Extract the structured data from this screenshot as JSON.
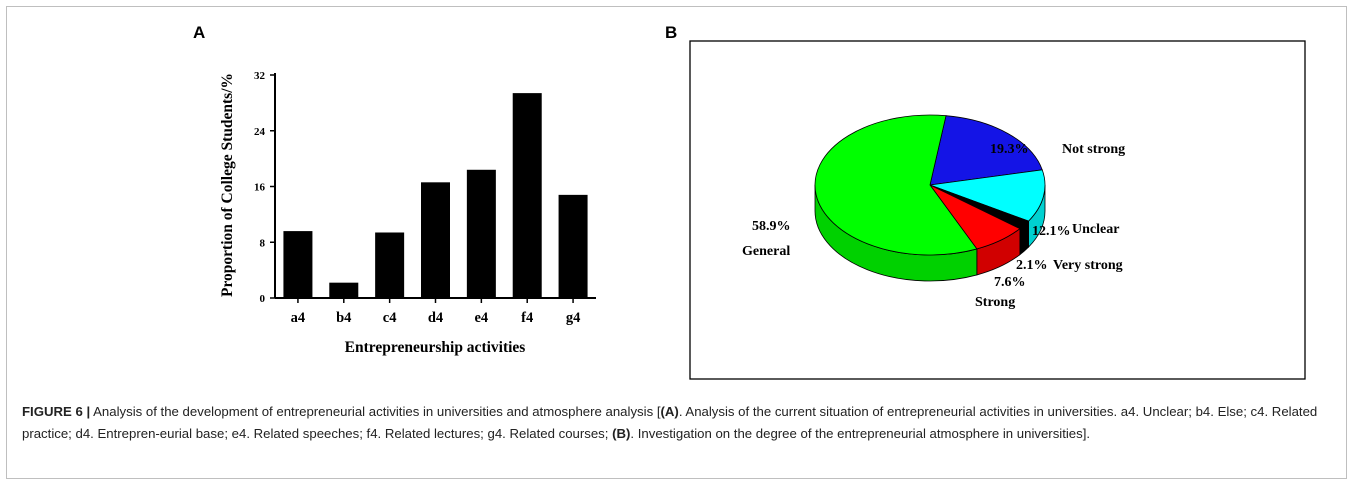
{
  "panel_a_letter": "A",
  "panel_b_letter": "B",
  "chart_data": [
    {
      "type": "bar",
      "categories": [
        "a4",
        "b4",
        "c4",
        "d4",
        "e4",
        "f4",
        "g4"
      ],
      "values": [
        9.6,
        2.2,
        9.4,
        16.6,
        18.4,
        29.4,
        14.8
      ],
      "xlabel": "Entrepreneurship activities",
      "ylabel": "Proportion of College Students/%",
      "ylim": [
        0,
        32
      ],
      "yticks": [
        "0",
        "8",
        "16",
        "24",
        "32"
      ],
      "grid": false,
      "bar_color": "#000000"
    },
    {
      "type": "pie",
      "style": "3d",
      "slices": [
        {
          "label": "Not strong",
          "value": 19.3,
          "value_label": "19.3%",
          "color": "#1414e6"
        },
        {
          "label": "Unclear",
          "value": 12.1,
          "value_label": "12.1%",
          "color": "#00ffff"
        },
        {
          "label": "Very strong",
          "value": 2.1,
          "value_label": "2.1%",
          "color": "#000000"
        },
        {
          "label": "Strong",
          "value": 7.6,
          "value_label": "7.6%",
          "color": "#ff0000"
        },
        {
          "label": "General",
          "value": 58.9,
          "value_label": "58.9%",
          "color": "#00ff00"
        }
      ]
    }
  ],
  "caption": {
    "figure_label": "FIGURE 6 |",
    "part1": " Analysis of the development of entrepreneurial activities in universities and atmosphere analysis [",
    "a_ref": "(A)",
    "part2": ". Analysis of the current situation of entrepreneurial activities in universities. a4. Unclear; b4. Else; c4. Related practice; d4. Entrepren-eurial base; e4. Related speeches; f4. Related lectures; g4. Related courses; ",
    "b_ref": "(B)",
    "part3": ". Investigation on the degree of the entrepreneurial atmosphere in universities]."
  }
}
